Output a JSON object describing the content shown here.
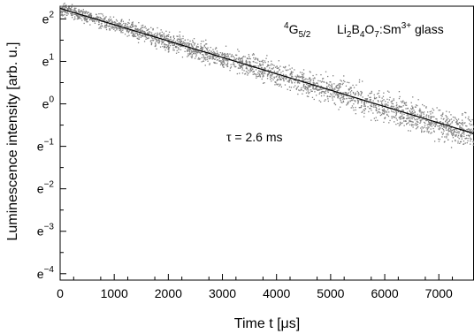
{
  "chart_data": {
    "type": "scatter",
    "xlabel": "Time t [μs]",
    "ylabel": "Luminescence intensity [arb. u.]",
    "y_scale": "log-e",
    "xlim": [
      0,
      7650
    ],
    "ylim_exponent": [
      -4.15,
      2.3
    ],
    "x_ticks": [
      0,
      1000,
      2000,
      3000,
      4000,
      5000,
      6000,
      7000
    ],
    "y_tick_labels": [
      {
        "base": "e",
        "exp": "2",
        "value_exp": 2
      },
      {
        "base": "e",
        "exp": "1",
        "value_exp": 1
      },
      {
        "base": "e",
        "exp": "0",
        "value_exp": 0
      },
      {
        "base": "e",
        "exp": "−1",
        "value_exp": -1
      },
      {
        "base": "e",
        "exp": "−2",
        "value_exp": -2
      },
      {
        "base": "e",
        "exp": "−3",
        "value_exp": -3
      },
      {
        "base": "e",
        "exp": "−4",
        "value_exp": -4
      }
    ],
    "fit": {
      "x": [
        0,
        7650
      ],
      "ln_y": [
        2.25,
        -0.7
      ],
      "color": "#000000"
    },
    "scatter_color": "#7f7f7f",
    "scatter_x_range": [
      0,
      7650
    ],
    "scatter_spread_ln": 0.1,
    "annotations": {
      "tau": "τ = 2.6 ms",
      "level_sup": "4",
      "level_main": "G",
      "level_sub": "5/2",
      "material": {
        "p1": "Li",
        "s1": "2",
        "p2": "B",
        "s2": "4",
        "p3": "O",
        "s3": "7",
        "p4": ":Sm",
        "sup": "3+",
        "p5": " glass"
      }
    }
  }
}
